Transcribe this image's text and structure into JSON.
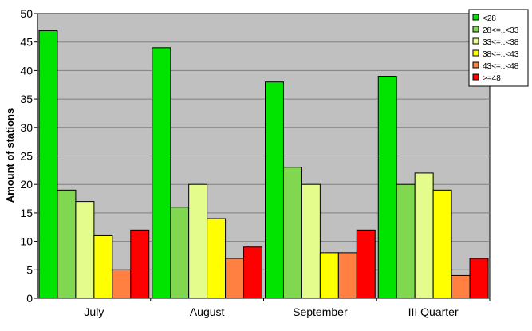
{
  "chart_data": {
    "type": "bar",
    "title": "",
    "xlabel": "",
    "ylabel": "Amount of stations",
    "ylim": [
      0,
      50
    ],
    "yticks": [
      0,
      5,
      10,
      15,
      20,
      25,
      30,
      35,
      40,
      45,
      50
    ],
    "grid": true,
    "legend_position": "top-right",
    "categories": [
      "July",
      "August",
      "September",
      "III Quarter"
    ],
    "series": [
      {
        "name": "<28",
        "color": "#00e400",
        "values": [
          47,
          44,
          38,
          39
        ]
      },
      {
        "name": "28<=..<33",
        "color": "#80d850",
        "values": [
          19,
          16,
          23,
          20
        ]
      },
      {
        "name": "33<=..<38",
        "color": "#e4fc8c",
        "values": [
          17,
          20,
          20,
          22
        ]
      },
      {
        "name": "38<=..<43",
        "color": "#ffff00",
        "values": [
          11,
          14,
          8,
          19
        ]
      },
      {
        "name": "43<=..<48",
        "color": "#ff8040",
        "values": [
          5,
          7,
          8,
          4
        ]
      },
      {
        "name": ">=48",
        "color": "#ff0000",
        "values": [
          12,
          9,
          12,
          7
        ]
      }
    ],
    "plot_background": "#c0c0c0"
  }
}
